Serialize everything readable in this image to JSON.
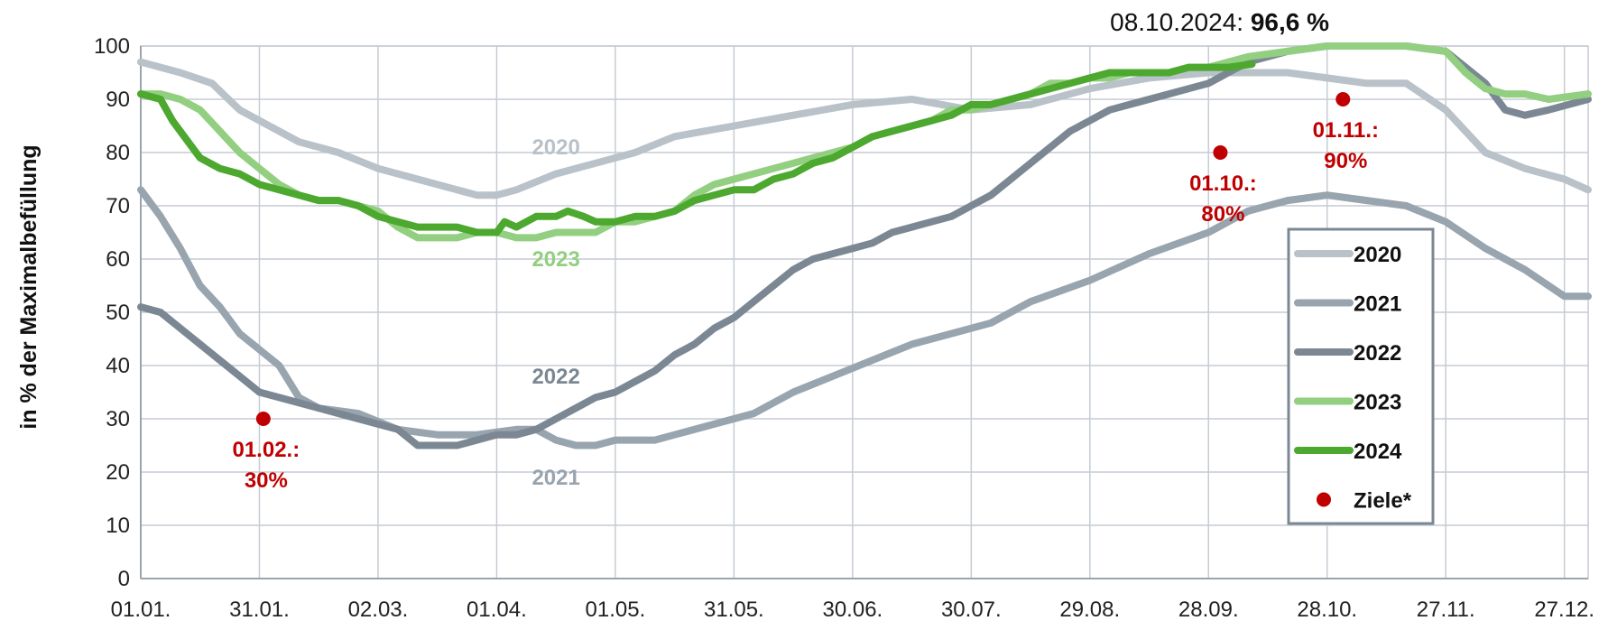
{
  "chart_data": {
    "type": "line",
    "title": "",
    "headline": {
      "date_text": "08.10.2024: ",
      "value_text": "96,6 %"
    },
    "ylabel": "in % der Maximalbefüllung",
    "xlabel": "",
    "ylim": [
      0,
      100
    ],
    "y_ticks": [
      "0",
      "10",
      "20",
      "30",
      "40",
      "50",
      "60",
      "70",
      "80",
      "90",
      "100"
    ],
    "x_ticks": [
      "01.01.",
      "31.01.",
      "02.03.",
      "01.04.",
      "01.05.",
      "31.05.",
      "30.06.",
      "30.07.",
      "29.08.",
      "28.09.",
      "28.10.",
      "27.11.",
      "27.12."
    ],
    "x_tick_days": [
      0,
      30,
      60,
      90,
      120,
      150,
      180,
      210,
      240,
      270,
      300,
      330,
      360
    ],
    "xlim_days": [
      0,
      366
    ],
    "grid": true,
    "legend_position": "right",
    "legend": [
      "2020",
      "2021",
      "2022",
      "2023",
      "2024",
      "Ziele*"
    ],
    "series": [
      {
        "name": "2020",
        "color": "#b9c1c9",
        "label_text": "2020",
        "label_at": [
          105,
          81
        ],
        "points": [
          [
            0,
            97
          ],
          [
            10,
            95
          ],
          [
            18,
            93
          ],
          [
            25,
            88
          ],
          [
            30,
            86
          ],
          [
            40,
            82
          ],
          [
            50,
            80
          ],
          [
            60,
            77
          ],
          [
            70,
            75
          ],
          [
            80,
            73
          ],
          [
            85,
            72
          ],
          [
            90,
            72
          ],
          [
            95,
            73
          ],
          [
            105,
            76
          ],
          [
            115,
            78
          ],
          [
            125,
            80
          ],
          [
            135,
            83
          ],
          [
            150,
            85
          ],
          [
            165,
            87
          ],
          [
            180,
            89
          ],
          [
            195,
            90
          ],
          [
            210,
            88
          ],
          [
            225,
            89
          ],
          [
            240,
            92
          ],
          [
            255,
            94
          ],
          [
            270,
            95
          ],
          [
            280,
            95
          ],
          [
            290,
            95
          ],
          [
            300,
            94
          ],
          [
            310,
            93
          ],
          [
            320,
            93
          ],
          [
            330,
            88
          ],
          [
            340,
            80
          ],
          [
            350,
            77
          ],
          [
            360,
            75
          ],
          [
            366,
            73
          ]
        ]
      },
      {
        "name": "2021",
        "color": "#98a4ae",
        "label_text": "2021",
        "label_at": [
          105,
          19
        ],
        "points": [
          [
            0,
            73
          ],
          [
            5,
            68
          ],
          [
            10,
            62
          ],
          [
            15,
            55
          ],
          [
            20,
            51
          ],
          [
            25,
            46
          ],
          [
            30,
            43
          ],
          [
            35,
            40
          ],
          [
            40,
            34
          ],
          [
            45,
            32
          ],
          [
            55,
            31
          ],
          [
            65,
            28
          ],
          [
            75,
            27
          ],
          [
            85,
            27
          ],
          [
            95,
            28
          ],
          [
            100,
            28
          ],
          [
            105,
            26
          ],
          [
            110,
            25
          ],
          [
            115,
            25
          ],
          [
            120,
            26
          ],
          [
            125,
            26
          ],
          [
            130,
            26
          ],
          [
            135,
            27
          ],
          [
            145,
            29
          ],
          [
            155,
            31
          ],
          [
            165,
            35
          ],
          [
            175,
            38
          ],
          [
            185,
            41
          ],
          [
            195,
            44
          ],
          [
            205,
            46
          ],
          [
            215,
            48
          ],
          [
            225,
            52
          ],
          [
            240,
            56
          ],
          [
            255,
            61
          ],
          [
            270,
            65
          ],
          [
            280,
            69
          ],
          [
            290,
            71
          ],
          [
            300,
            72
          ],
          [
            310,
            71
          ],
          [
            320,
            70
          ],
          [
            330,
            67
          ],
          [
            340,
            62
          ],
          [
            350,
            58
          ],
          [
            360,
            53
          ],
          [
            366,
            53
          ]
        ]
      },
      {
        "name": "2022",
        "color": "#7b8894",
        "label_text": "2022",
        "label_at": [
          105,
          38
        ],
        "points": [
          [
            0,
            51
          ],
          [
            5,
            50
          ],
          [
            10,
            47
          ],
          [
            15,
            44
          ],
          [
            20,
            41
          ],
          [
            25,
            38
          ],
          [
            30,
            35
          ],
          [
            35,
            34
          ],
          [
            45,
            32
          ],
          [
            55,
            30
          ],
          [
            65,
            28
          ],
          [
            70,
            25
          ],
          [
            75,
            25
          ],
          [
            80,
            25
          ],
          [
            85,
            26
          ],
          [
            90,
            27
          ],
          [
            95,
            27
          ],
          [
            100,
            28
          ],
          [
            105,
            30
          ],
          [
            110,
            32
          ],
          [
            115,
            34
          ],
          [
            120,
            35
          ],
          [
            125,
            37
          ],
          [
            130,
            39
          ],
          [
            135,
            42
          ],
          [
            140,
            44
          ],
          [
            145,
            47
          ],
          [
            150,
            49
          ],
          [
            155,
            52
          ],
          [
            160,
            55
          ],
          [
            165,
            58
          ],
          [
            170,
            60
          ],
          [
            175,
            61
          ],
          [
            180,
            62
          ],
          [
            185,
            63
          ],
          [
            190,
            65
          ],
          [
            195,
            66
          ],
          [
            200,
            67
          ],
          [
            205,
            68
          ],
          [
            210,
            70
          ],
          [
            215,
            72
          ],
          [
            220,
            75
          ],
          [
            225,
            78
          ],
          [
            230,
            81
          ],
          [
            235,
            84
          ],
          [
            240,
            86
          ],
          [
            245,
            88
          ],
          [
            250,
            89
          ],
          [
            255,
            90
          ],
          [
            260,
            91
          ],
          [
            265,
            92
          ],
          [
            270,
            93
          ],
          [
            275,
            95
          ],
          [
            280,
            97
          ],
          [
            290,
            99
          ],
          [
            300,
            100
          ],
          [
            310,
            100
          ],
          [
            320,
            100
          ],
          [
            330,
            99
          ],
          [
            340,
            93
          ],
          [
            345,
            88
          ],
          [
            350,
            87
          ],
          [
            356,
            88
          ],
          [
            366,
            90
          ]
        ]
      },
      {
        "name": "2023",
        "color": "#92cf80",
        "label_text": "2023",
        "label_at": [
          105,
          60
        ],
        "points": [
          [
            0,
            91
          ],
          [
            5,
            91
          ],
          [
            10,
            90
          ],
          [
            15,
            88
          ],
          [
            20,
            84
          ],
          [
            25,
            80
          ],
          [
            30,
            77
          ],
          [
            35,
            74
          ],
          [
            40,
            72
          ],
          [
            45,
            71
          ],
          [
            50,
            71
          ],
          [
            55,
            70
          ],
          [
            60,
            69
          ],
          [
            65,
            66
          ],
          [
            70,
            64
          ],
          [
            75,
            64
          ],
          [
            80,
            64
          ],
          [
            85,
            65
          ],
          [
            90,
            65
          ],
          [
            95,
            64
          ],
          [
            100,
            64
          ],
          [
            105,
            65
          ],
          [
            110,
            65
          ],
          [
            115,
            65
          ],
          [
            120,
            67
          ],
          [
            125,
            67
          ],
          [
            130,
            68
          ],
          [
            135,
            69
          ],
          [
            140,
            72
          ],
          [
            145,
            74
          ],
          [
            150,
            75
          ],
          [
            155,
            76
          ],
          [
            160,
            77
          ],
          [
            165,
            78
          ],
          [
            170,
            79
          ],
          [
            175,
            80
          ],
          [
            180,
            81
          ],
          [
            185,
            83
          ],
          [
            190,
            84
          ],
          [
            195,
            85
          ],
          [
            200,
            86
          ],
          [
            205,
            88
          ],
          [
            210,
            88
          ],
          [
            215,
            89
          ],
          [
            220,
            90
          ],
          [
            225,
            91
          ],
          [
            230,
            93
          ],
          [
            235,
            93
          ],
          [
            240,
            94
          ],
          [
            245,
            94
          ],
          [
            250,
            95
          ],
          [
            255,
            95
          ],
          [
            260,
            95
          ],
          [
            265,
            96
          ],
          [
            270,
            96
          ],
          [
            275,
            97
          ],
          [
            280,
            98
          ],
          [
            290,
            99
          ],
          [
            300,
            100
          ],
          [
            310,
            100
          ],
          [
            320,
            100
          ],
          [
            330,
            99
          ],
          [
            335,
            95
          ],
          [
            340,
            92
          ],
          [
            345,
            91
          ],
          [
            350,
            91
          ],
          [
            356,
            90
          ],
          [
            366,
            91
          ]
        ]
      },
      {
        "name": "2024",
        "color": "#4ca82e",
        "label_text": "",
        "label_at": null,
        "points": [
          [
            0,
            91
          ],
          [
            5,
            90
          ],
          [
            8,
            86
          ],
          [
            12,
            82
          ],
          [
            15,
            79
          ],
          [
            20,
            77
          ],
          [
            25,
            76
          ],
          [
            30,
            74
          ],
          [
            35,
            73
          ],
          [
            40,
            72
          ],
          [
            45,
            71
          ],
          [
            50,
            71
          ],
          [
            55,
            70
          ],
          [
            60,
            68
          ],
          [
            65,
            67
          ],
          [
            70,
            66
          ],
          [
            75,
            66
          ],
          [
            80,
            66
          ],
          [
            85,
            65
          ],
          [
            90,
            65
          ],
          [
            92,
            67
          ],
          [
            95,
            66
          ],
          [
            100,
            68
          ],
          [
            105,
            68
          ],
          [
            108,
            69
          ],
          [
            112,
            68
          ],
          [
            115,
            67
          ],
          [
            120,
            67
          ],
          [
            125,
            68
          ],
          [
            130,
            68
          ],
          [
            135,
            69
          ],
          [
            140,
            71
          ],
          [
            145,
            72
          ],
          [
            150,
            73
          ],
          [
            155,
            73
          ],
          [
            160,
            75
          ],
          [
            165,
            76
          ],
          [
            170,
            78
          ],
          [
            175,
            79
          ],
          [
            180,
            81
          ],
          [
            185,
            83
          ],
          [
            190,
            84
          ],
          [
            195,
            85
          ],
          [
            200,
            86
          ],
          [
            205,
            87
          ],
          [
            210,
            89
          ],
          [
            215,
            89
          ],
          [
            220,
            90
          ],
          [
            225,
            91
          ],
          [
            230,
            92
          ],
          [
            235,
            93
          ],
          [
            240,
            94
          ],
          [
            245,
            95
          ],
          [
            250,
            95
          ],
          [
            255,
            95
          ],
          [
            260,
            95
          ],
          [
            265,
            96
          ],
          [
            270,
            96
          ],
          [
            275,
            96
          ],
          [
            281,
            96.6
          ]
        ]
      }
    ],
    "targets": {
      "name": "Ziele*",
      "color": "#c00000",
      "points": [
        {
          "day": 31,
          "value": 30,
          "label_line1": "01.02.:",
          "label_line2": "30%"
        },
        {
          "day": 273,
          "value": 80,
          "label_line1": "01.10.:",
          "label_line2": "80%"
        },
        {
          "day": 304,
          "value": 90,
          "label_line1": "01.11.:",
          "label_line2": "90%"
        }
      ]
    }
  }
}
